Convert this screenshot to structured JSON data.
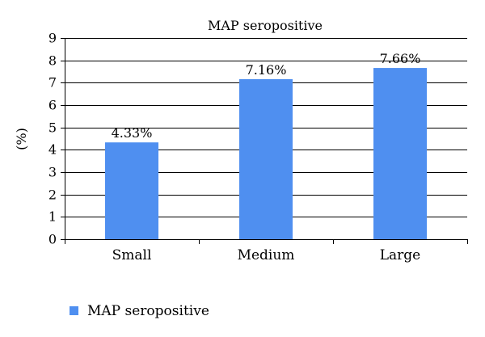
{
  "chart_data": {
    "type": "bar",
    "title": "MAP seropositive",
    "categories": [
      "Small",
      "Medium",
      "Large"
    ],
    "series": [
      {
        "name": "MAP seropositive",
        "values": [
          4.33,
          7.16,
          7.66
        ],
        "labels": [
          "4.33%",
          "7.16%",
          "7.66%"
        ],
        "color": "#4f8ff0"
      }
    ],
    "xlabel": "",
    "ylabel": "(%)",
    "ylim": [
      0,
      9
    ],
    "yticks": [
      0,
      1,
      2,
      3,
      4,
      5,
      6,
      7,
      8,
      9
    ],
    "grid": true,
    "legend": "bottom-left"
  }
}
